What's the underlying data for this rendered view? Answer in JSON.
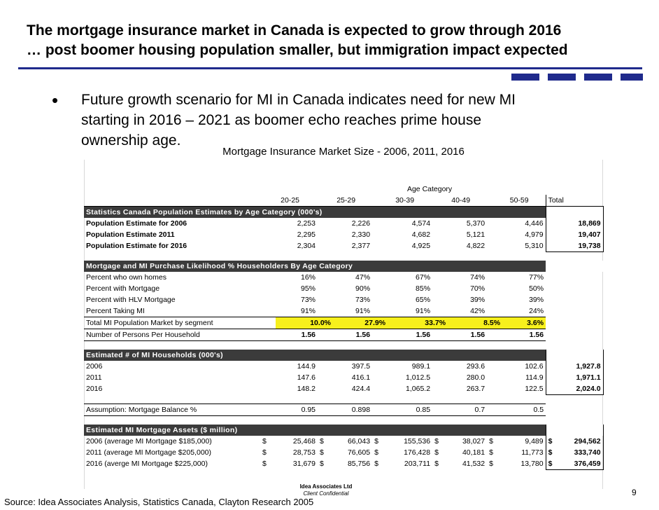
{
  "title": {
    "line1": "The mortgage insurance market in Canada is expected to grow through 2016",
    "line2": "… post boomer housing population smaller, but immigration impact expected"
  },
  "bullet": {
    "line1": "Future growth scenario for MI in Canada indicates need for new MI",
    "line2": "starting in 2016 – 2021 as boomer echo reaches prime house",
    "line3": "ownership age."
  },
  "table": {
    "title": "Mortgage Insurance Market Size - 2006, 2011, 2016",
    "age_category_label": "Age Category",
    "age_headers": [
      "20-25",
      "25-29",
      "30-39",
      "40-49",
      "50-59"
    ],
    "total_header": "Total",
    "sec1": {
      "title": "Statistics Canada Population Estimates by Age Category (000's)",
      "rows": [
        {
          "label": "Population Estimate for 2006",
          "v": [
            "2,253",
            "2,226",
            "4,574",
            "5,370",
            "4,446"
          ],
          "total": "18,869"
        },
        {
          "label": "Population Estimate 2011",
          "v": [
            "2,295",
            "2,330",
            "4,682",
            "5,121",
            "4,979"
          ],
          "total": "19,407"
        },
        {
          "label": "Population Estimate for 2016",
          "v": [
            "2,304",
            "2,377",
            "4,925",
            "4,822",
            "5,310"
          ],
          "total": "19,738"
        }
      ]
    },
    "sec2": {
      "title": "Mortgage and MI Purchase Likelihood % Householders By Age Category",
      "rows": [
        {
          "label": "Percent who own homes",
          "v": [
            "16%",
            "47%",
            "67%",
            "74%",
            "77%"
          ]
        },
        {
          "label": "Percent with Mortgage",
          "v": [
            "95%",
            "90%",
            "85%",
            "70%",
            "50%"
          ]
        },
        {
          "label": "Percent with HLV Mortgage",
          "v": [
            "73%",
            "73%",
            "65%",
            "39%",
            "39%"
          ]
        },
        {
          "label": "Percent Taking MI",
          "v": [
            "91%",
            "91%",
            "91%",
            "42%",
            "24%"
          ]
        },
        {
          "label": "Total MI Population Market by segment",
          "v": [
            "10.0%",
            "27.9%",
            "33.7%",
            "8.5%",
            "3.6%"
          ]
        },
        {
          "label": "Number of Persons Per Household",
          "v": [
            "1.56",
            "1.56",
            "1.56",
            "1.56",
            "1.56"
          ]
        }
      ]
    },
    "sec3": {
      "title": "Estimated # of MI Households (000's)",
      "rows": [
        {
          "label": "2006",
          "v": [
            "144.9",
            "397.5",
            "989.1",
            "293.6",
            "102.6"
          ],
          "total": "1,927.8"
        },
        {
          "label": "2011",
          "v": [
            "147.6",
            "416.1",
            "1,012.5",
            "280.0",
            "114.9"
          ],
          "total": "1,971.1"
        },
        {
          "label": "2016",
          "v": [
            "148.2",
            "424.4",
            "1,065.2",
            "263.7",
            "122.5"
          ],
          "total": "2,024.0"
        }
      ]
    },
    "assumption": {
      "label": "Assumption: Mortgage Balance %",
      "v": [
        "0.95",
        "0.898",
        "0.85",
        "0.7",
        "0.5"
      ]
    },
    "sec4": {
      "title": "Estimated MI Mortgage Assets ($ million)",
      "currency": "$",
      "rows": [
        {
          "label": "2006 (average MI Mortgage $185,000)",
          "v": [
            "25,468",
            "66,043",
            "155,536",
            "38,027",
            "9,489"
          ],
          "total": "294,562"
        },
        {
          "label": "2011 (average MI Mortgage $205,000)",
          "v": [
            "28,753",
            "76,605",
            "176,428",
            "40,181",
            "11,773"
          ],
          "total": "333,740"
        },
        {
          "label": "2016 (averge MI Mortgage $225,000)",
          "v": [
            "31,679",
            "85,756",
            "203,711",
            "41,532",
            "13,780"
          ],
          "total": "376,459"
        }
      ]
    }
  },
  "footer": {
    "source": "Source: Idea Associates Analysis, Statistics Canada, Clayton Research 2005",
    "company": "Idea Associates Ltd",
    "confidential": "Client Confidential",
    "page": "9"
  },
  "colors": {
    "accent": "#1f2a8c",
    "section_header": "#3b3b3b",
    "highlight": "#f7f01c"
  }
}
